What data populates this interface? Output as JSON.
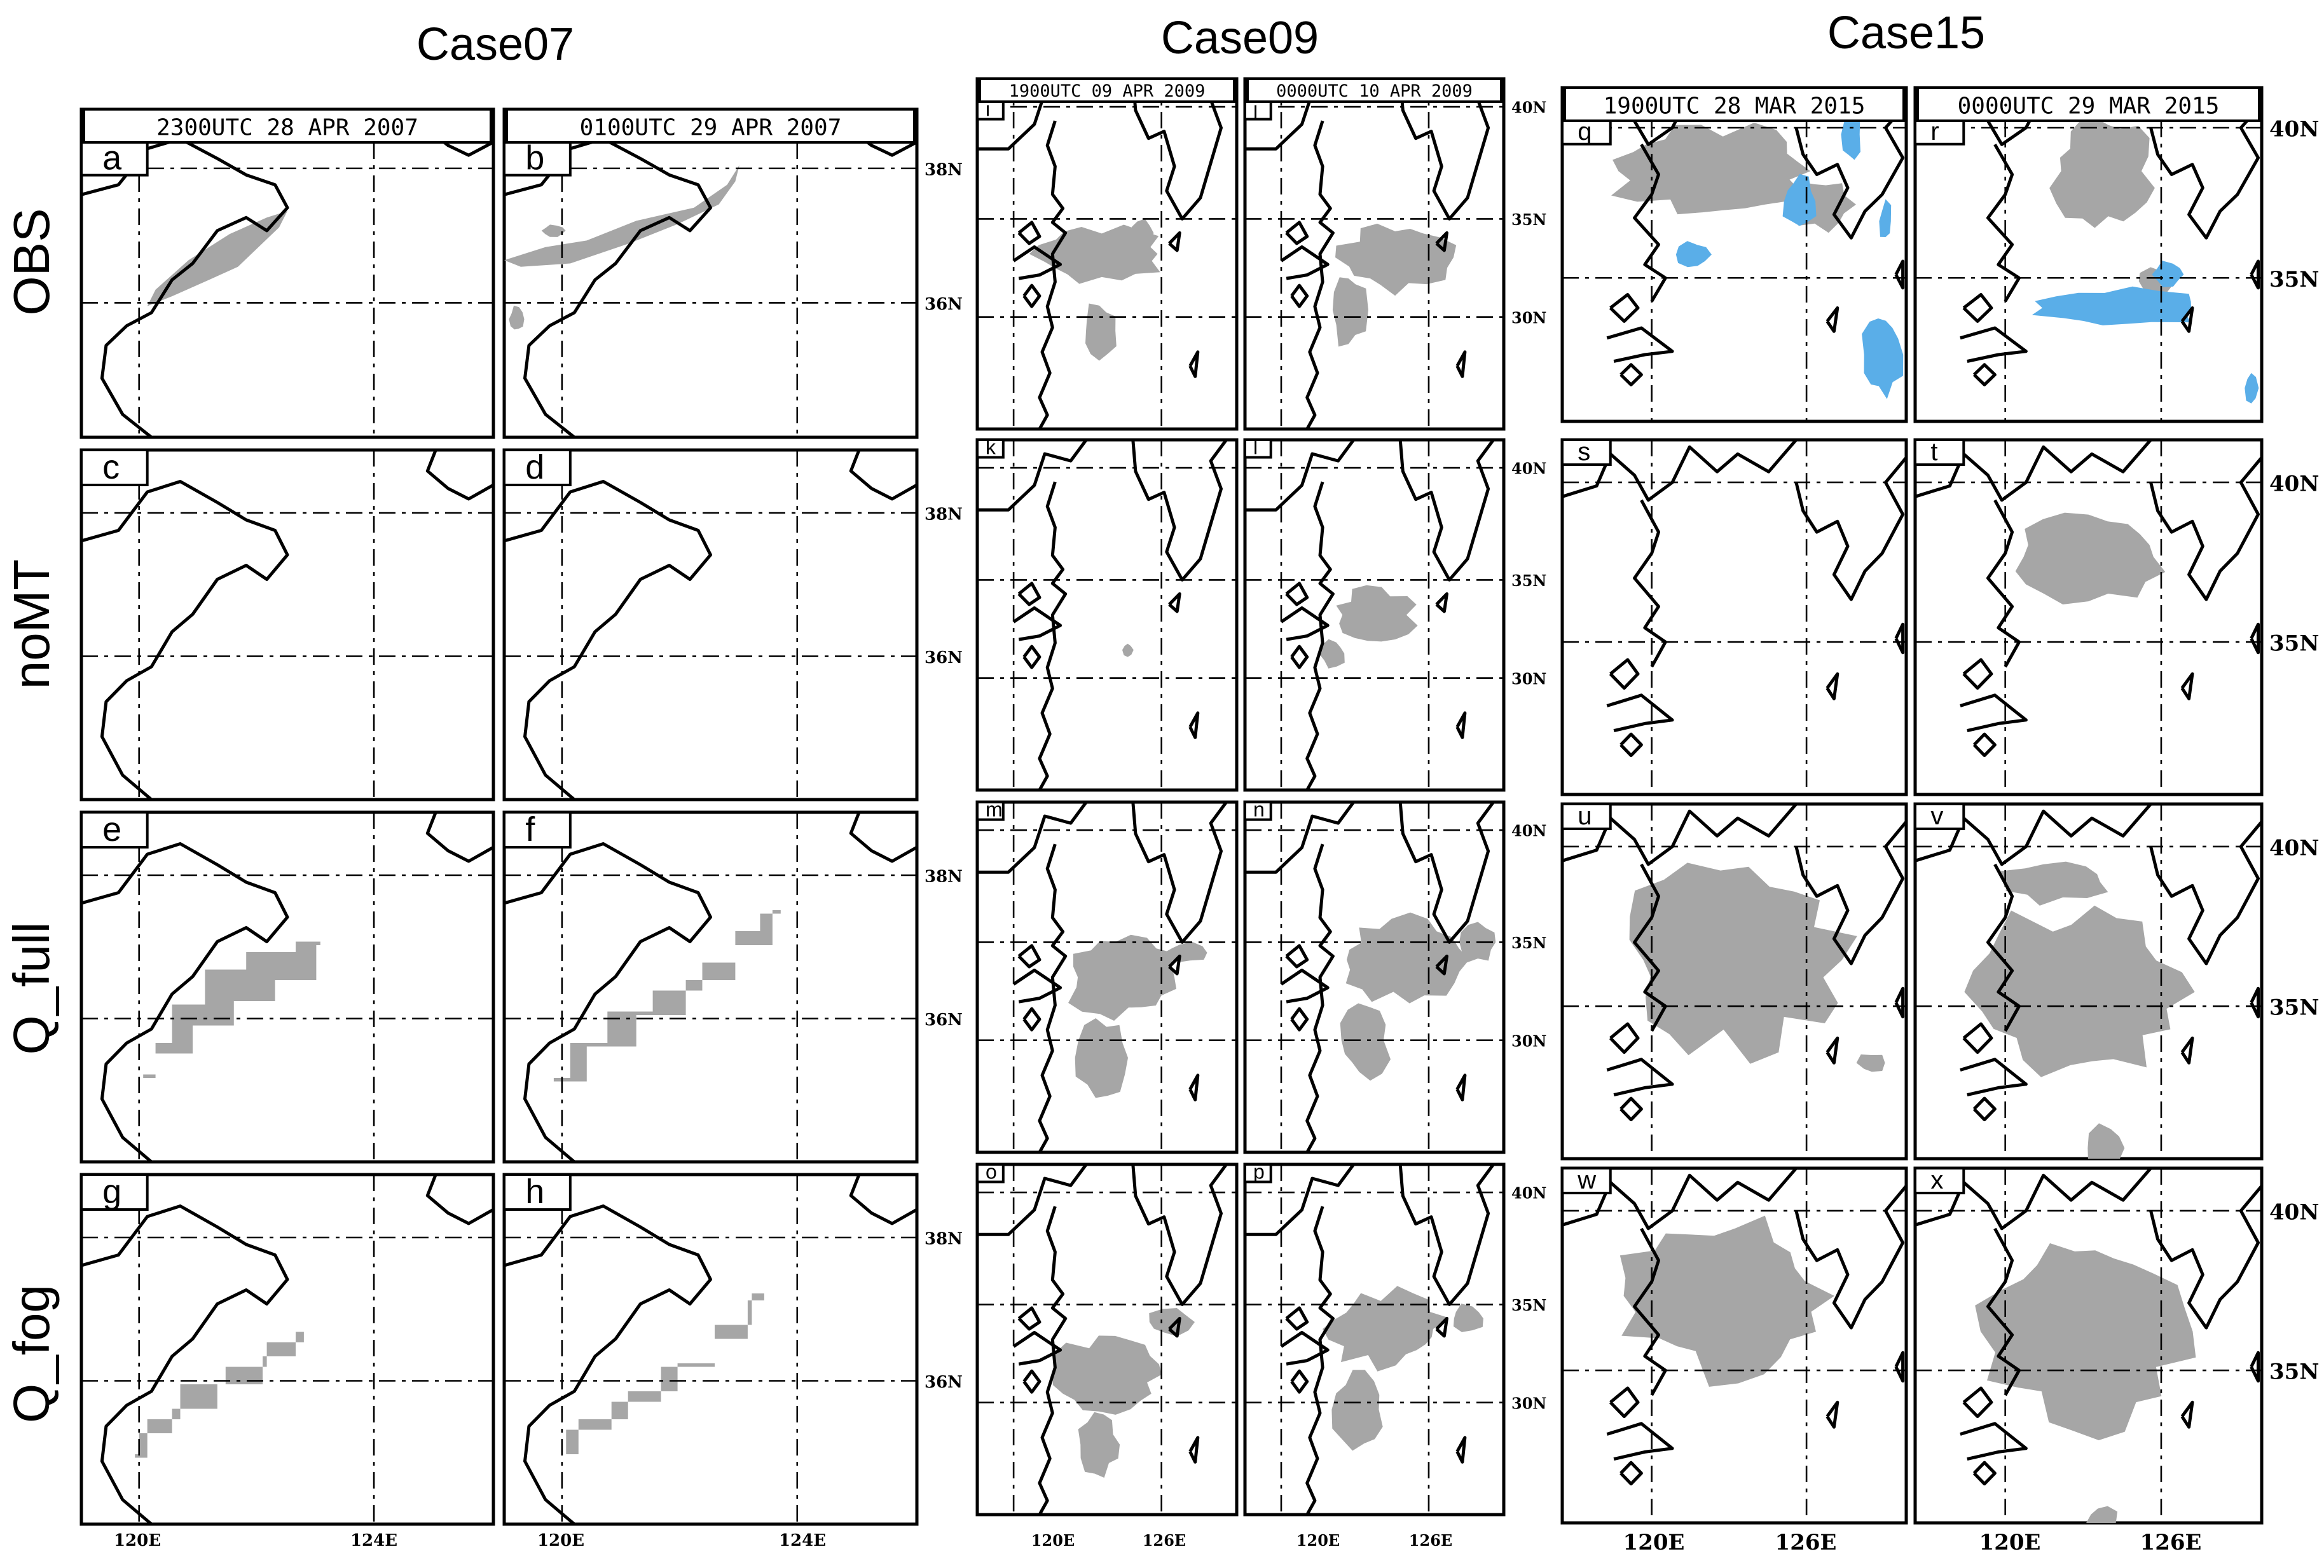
{
  "cases": [
    {
      "title": "Case07",
      "lat_ticks": [
        "38N",
        "36N"
      ],
      "lon_ticks": [
        "120E",
        "124E"
      ],
      "dates": [
        "2300UTC 28 APR 2007",
        "0100UTC 29 APR 2007"
      ],
      "rows": [
        [
          "a",
          "b"
        ],
        [
          "c",
          "d"
        ],
        [
          "e",
          "f"
        ],
        [
          "g",
          "h"
        ]
      ]
    },
    {
      "title": "Case09",
      "lat_ticks": [
        "40N",
        "35N",
        "30N"
      ],
      "lon_ticks": [
        "120E",
        "126E"
      ],
      "dates": [
        "1900UTC 09 APR 2009",
        "0000UTC 10 APR 2009"
      ],
      "rows": [
        [
          "i",
          "j"
        ],
        [
          "k",
          "l"
        ],
        [
          "m",
          "n"
        ],
        [
          "o",
          "p"
        ]
      ]
    },
    {
      "title": "Case15",
      "lat_ticks": [
        "40N",
        "35N"
      ],
      "lon_ticks": [
        "120E",
        "126E"
      ],
      "dates": [
        "1900UTC 28 MAR 2015",
        "0000UTC 29 MAR 2015"
      ],
      "rows": [
        [
          "q",
          "r"
        ],
        [
          "s",
          "t"
        ],
        [
          "u",
          "v"
        ],
        [
          "w",
          "x"
        ]
      ]
    }
  ],
  "row_labels": [
    "OBS",
    "noMT",
    "Q_full",
    "Q_fog"
  ],
  "colors": {
    "fog": "#a6a6a6",
    "obs_secondary": "#5aaee8",
    "frame": "#000000"
  }
}
